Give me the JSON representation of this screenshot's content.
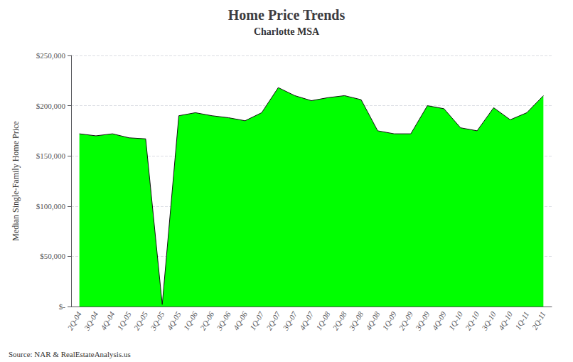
{
  "chart_data": {
    "type": "area",
    "title": "Home Price Trends",
    "subtitle": "Charlotte MSA",
    "y_label": "Median Single-Family Home Price",
    "source": "Source: NAR & RealEstateAnalysis.us",
    "categories": [
      "2Q-04",
      "3Q-04",
      "4Q-04",
      "1Q-05",
      "2Q-05",
      "3Q-05",
      "4Q-05",
      "1Q-06",
      "2Q-06",
      "3Q-06",
      "4Q-06",
      "1Q-07",
      "2Q-07",
      "3Q-07",
      "4Q-07",
      "1Q-08",
      "2Q-08",
      "3Q-08",
      "4Q-08",
      "1Q-09",
      "2Q-09",
      "3Q-09",
      "4Q-09",
      "1Q-10",
      "2Q-10",
      "3Q-10",
      "4Q-10",
      "1Q-11",
      "2Q-11"
    ],
    "values": [
      172000,
      170000,
      172000,
      168000,
      167000,
      2000,
      190000,
      193000,
      190000,
      188000,
      185000,
      193000,
      218000,
      210000,
      205000,
      208000,
      210000,
      206000,
      175000,
      172000,
      172000,
      200000,
      197000,
      178000,
      175000,
      198000,
      186000,
      193000,
      210000
    ],
    "color": "#00FF00",
    "ylim": [
      0,
      250000
    ],
    "yticks": [
      {
        "value": 0,
        "label": "$-"
      },
      {
        "value": 50000,
        "label": "$50,000"
      },
      {
        "value": 100000,
        "label": "$100,000"
      },
      {
        "value": 150000,
        "label": "$150,000"
      },
      {
        "value": 200000,
        "label": "$200,000"
      },
      {
        "value": 250000,
        "label": "$250,000"
      }
    ],
    "grid": true
  }
}
